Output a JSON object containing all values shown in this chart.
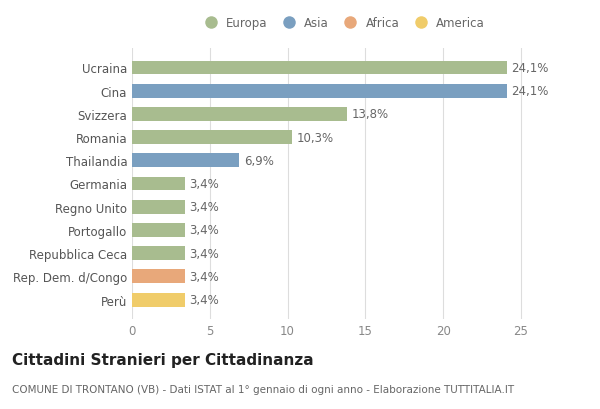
{
  "categories": [
    "Ucraina",
    "Cina",
    "Svizzera",
    "Romania",
    "Thailandia",
    "Germania",
    "Regno Unito",
    "Portogallo",
    "Repubblica Ceca",
    "Rep. Dem. d/Congo",
    "Perù"
  ],
  "values": [
    24.1,
    24.1,
    13.8,
    10.3,
    6.9,
    3.4,
    3.4,
    3.4,
    3.4,
    3.4,
    3.4
  ],
  "bar_colors": [
    "#a8bc8f",
    "#7a9fc0",
    "#a8bc8f",
    "#a8bc8f",
    "#7a9fc0",
    "#a8bc8f",
    "#a8bc8f",
    "#a8bc8f",
    "#a8bc8f",
    "#e8a87a",
    "#f0cc6a"
  ],
  "labels": [
    "24,1%",
    "24,1%",
    "13,8%",
    "10,3%",
    "6,9%",
    "3,4%",
    "3,4%",
    "3,4%",
    "3,4%",
    "3,4%",
    "3,4%"
  ],
  "legend_labels": [
    "Europa",
    "Asia",
    "Africa",
    "America"
  ],
  "legend_colors": [
    "#a8bc8f",
    "#7a9fc0",
    "#e8a87a",
    "#f0cc6a"
  ],
  "xlim": [
    0,
    27
  ],
  "xticks": [
    0,
    5,
    10,
    15,
    20,
    25
  ],
  "title": "Cittadini Stranieri per Cittadinanza",
  "subtitle": "COMUNE DI TRONTANO (VB) - Dati ISTAT al 1° gennaio di ogni anno - Elaborazione TUTTITALIA.IT",
  "bg_color": "#ffffff",
  "grid_color": "#dddddd",
  "bar_height": 0.6,
  "label_fontsize": 8.5,
  "title_fontsize": 11,
  "subtitle_fontsize": 7.5,
  "tick_fontsize": 8.5,
  "legend_fontsize": 8.5
}
